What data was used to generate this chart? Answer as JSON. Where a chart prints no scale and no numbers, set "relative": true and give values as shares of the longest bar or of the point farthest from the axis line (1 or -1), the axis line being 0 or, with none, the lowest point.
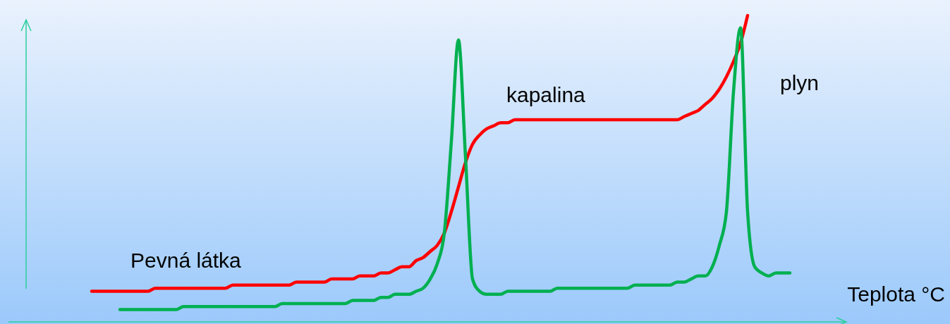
{
  "chart_data": {
    "type": "line",
    "relative": true,
    "xlabel": "Teplota °C",
    "marker": "none",
    "line_style": "solid",
    "annotations": [
      "Pevná látka",
      "kapalina",
      "plyn"
    ],
    "categories": [
      null,
      null,
      null,
      null,
      null,
      null,
      null,
      null,
      null,
      null,
      null,
      null,
      null,
      null,
      null,
      null,
      null,
      null,
      null,
      null,
      null,
      null,
      null,
      null,
      null,
      null,
      null,
      null,
      null,
      null,
      null,
      null,
      null,
      null,
      null,
      null,
      null,
      null,
      null,
      null,
      null,
      null,
      null,
      null,
      null,
      null,
      null,
      null,
      null,
      null,
      null,
      null,
      null,
      null,
      null,
      null,
      null,
      null,
      null,
      null,
      null,
      null,
      null,
      null,
      null,
      null,
      null,
      null,
      null,
      null,
      null,
      null,
      null,
      null,
      null,
      null,
      null,
      null,
      null,
      null,
      null,
      null,
      null,
      null,
      null,
      null,
      null,
      null,
      null,
      null,
      null,
      null,
      null,
      null,
      null,
      null,
      null,
      null,
      null,
      null
    ],
    "series": [
      {
        "color": "#ff0000",
        "values": [
          0.1,
          0.1,
          0.1,
          0.1,
          0.1,
          0.1,
          0.1,
          0.1,
          0.1,
          0.11,
          0.11,
          0.11,
          0.11,
          0.11,
          0.11,
          0.11,
          0.11,
          0.11,
          0.11,
          0.11,
          0.12,
          0.12,
          0.12,
          0.12,
          0.12,
          0.12,
          0.12,
          0.12,
          0.12,
          0.13,
          0.13,
          0.13,
          0.13,
          0.13,
          0.14,
          0.14,
          0.14,
          0.14,
          0.15,
          0.15,
          0.15,
          0.16,
          0.16,
          0.17,
          0.18,
          0.18,
          0.2,
          0.21,
          0.23,
          0.25,
          0.29,
          0.36,
          0.44,
          0.52,
          0.58,
          0.61,
          0.63,
          0.64,
          0.65,
          0.65,
          0.66,
          0.66,
          0.66,
          0.66,
          0.66,
          0.66,
          0.66,
          0.66,
          0.66,
          0.66,
          0.66,
          0.66,
          0.66,
          0.66,
          0.66,
          0.66,
          0.66,
          0.66,
          0.66,
          0.66,
          0.66,
          0.66,
          0.66,
          0.66,
          0.67,
          0.68,
          0.69,
          0.71,
          0.73,
          0.76,
          0.8,
          0.85,
          0.91,
          1.0,
          null,
          null,
          null,
          null,
          null,
          null
        ]
      },
      {
        "color": "#00b050",
        "values": [
          null,
          null,
          null,
          null,
          0.04,
          0.04,
          0.04,
          0.04,
          0.04,
          0.04,
          0.04,
          0.04,
          0.04,
          0.05,
          0.05,
          0.05,
          0.05,
          0.05,
          0.05,
          0.05,
          0.05,
          0.05,
          0.05,
          0.05,
          0.05,
          0.05,
          0.05,
          0.06,
          0.06,
          0.06,
          0.06,
          0.06,
          0.06,
          0.06,
          0.06,
          0.06,
          0.06,
          0.07,
          0.07,
          0.07,
          0.07,
          0.08,
          0.08,
          0.09,
          0.09,
          0.09,
          0.1,
          0.11,
          0.14,
          0.19,
          0.29,
          0.59,
          0.92,
          0.54,
          0.14,
          0.1,
          0.09,
          0.09,
          0.09,
          0.1,
          0.1,
          0.1,
          0.1,
          0.1,
          0.1,
          0.1,
          0.11,
          0.11,
          0.11,
          0.11,
          0.11,
          0.11,
          0.11,
          0.11,
          0.11,
          0.11,
          0.11,
          0.12,
          0.12,
          0.12,
          0.12,
          0.12,
          0.12,
          0.13,
          0.13,
          0.14,
          0.15,
          0.15,
          0.18,
          0.25,
          0.36,
          0.75,
          0.96,
          0.36,
          0.18,
          0.16,
          0.15,
          0.16,
          0.16,
          0.16
        ]
      }
    ]
  }
}
